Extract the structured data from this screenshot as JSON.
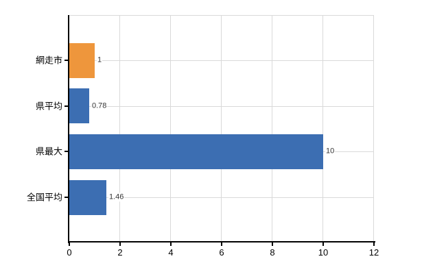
{
  "chart_data": {
    "type": "bar",
    "orientation": "horizontal",
    "title": "",
    "categories": [
      "網走市",
      "県平均",
      "県最大",
      "全国平均"
    ],
    "values": [
      1,
      0.78,
      10,
      1.46
    ],
    "value_labels": [
      "1",
      "0.78",
      "10",
      "1.46"
    ],
    "bar_colors": [
      "#ee963c",
      "#3c6eb2",
      "#3c6eb2",
      "#3c6eb2"
    ],
    "xlim": [
      0,
      12
    ],
    "x_ticks": [
      "0",
      "2",
      "4",
      "6",
      "8",
      "10",
      "12"
    ],
    "grid": true,
    "legend": false,
    "colors": {
      "background": "#ffffff",
      "grid": "#d9d9d9",
      "axis": "#000000",
      "category_label": "#000000",
      "value_label": "#333333",
      "tick_label": "#000000"
    }
  }
}
